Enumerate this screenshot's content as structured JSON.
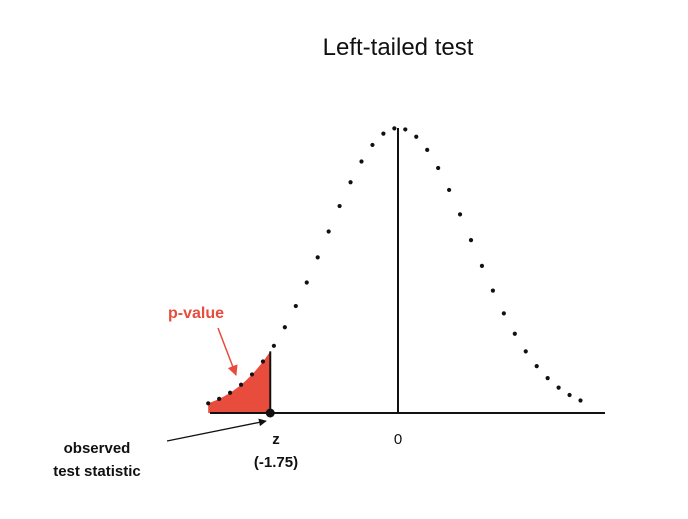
{
  "title": "Left-tailed test",
  "labels": {
    "p_value": "p-value",
    "z": "z",
    "z_value": "(-1.75)",
    "zero": "0",
    "observed_line1": "observed",
    "observed_line2": "test statistic"
  },
  "colors": {
    "shade": "#e74c3c",
    "arrow_red": "#e74c3c",
    "ink": "#111111"
  },
  "distribution": {
    "type": "standard-normal",
    "z_observed": -1.75,
    "x_range": [
      -2.6,
      2.6
    ],
    "tail": "left"
  }
}
